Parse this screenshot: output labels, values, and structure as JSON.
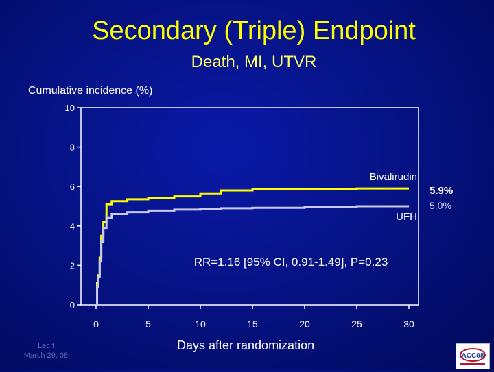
{
  "slide": {
    "title": "Secondary (Triple) Endpoint",
    "subtitle": "Death, MI, UTVR",
    "footnote_line1": "Lec f",
    "footnote_line2": "March 29, 08",
    "logo_text": "ACC08"
  },
  "colors": {
    "background": "#05117e",
    "title": "#ffff00",
    "bivalirudin": "#ffff00",
    "ufh": "#c8c8f0",
    "axis": "#ffffff"
  },
  "chart_data": {
    "type": "line",
    "title": "Secondary (Triple) Endpoint",
    "subtitle": "Death, MI, UTVR",
    "xlabel": "Days after randomization",
    "ylabel": "Cumulative incidence (%)",
    "xlim": [
      0,
      30
    ],
    "ylim": [
      0,
      10
    ],
    "xticks": [
      0,
      5,
      10,
      15,
      20,
      25,
      30
    ],
    "yticks": [
      0,
      2,
      4,
      6,
      8,
      10
    ],
    "grid": false,
    "annotation": "RR=1.16 [95% CI, 0.91-1.49], P=0.23",
    "series": [
      {
        "name": "Bivalirudin",
        "end_label": "5.9%",
        "color": "#ffff00",
        "x": [
          0,
          0.1,
          0.2,
          0.35,
          0.5,
          0.7,
          1,
          1.5,
          3,
          5,
          7.5,
          10,
          12,
          15,
          20,
          25,
          30
        ],
        "y": [
          0,
          1.1,
          1.5,
          2.4,
          3.5,
          4.2,
          5.1,
          5.25,
          5.35,
          5.42,
          5.5,
          5.65,
          5.8,
          5.85,
          5.88,
          5.9,
          5.9
        ]
      },
      {
        "name": "UFH",
        "end_label": "5.0%",
        "color": "#c8c8f0",
        "x": [
          0,
          0.1,
          0.2,
          0.35,
          0.5,
          0.7,
          1,
          1.5,
          3,
          5,
          7.5,
          10,
          12,
          15,
          20,
          25,
          30
        ],
        "y": [
          0,
          0.9,
          1.4,
          2.2,
          3.2,
          3.9,
          4.4,
          4.6,
          4.7,
          4.78,
          4.83,
          4.87,
          4.9,
          4.92,
          4.95,
          5.0,
          5.0
        ]
      }
    ]
  }
}
